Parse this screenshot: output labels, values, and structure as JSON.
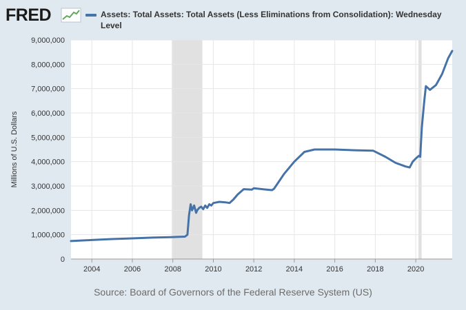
{
  "header": {
    "logo_text": "FRED",
    "logo_icon": "line-chart-icon"
  },
  "source_text": "Source: Board of Governors of the Federal Reserve System (US)",
  "chart_data": {
    "type": "line",
    "title": "",
    "xlabel": "",
    "ylabel": "Millions of U.S. Dollars",
    "xlim": [
      2002.97,
      2021.8
    ],
    "ylim": [
      0,
      9000000
    ],
    "grid": true,
    "legend_placement": "top",
    "x_ticks": [
      2004,
      2006,
      2008,
      2010,
      2012,
      2014,
      2016,
      2018,
      2020
    ],
    "x_tick_labels": [
      "2004",
      "2006",
      "2008",
      "2010",
      "2012",
      "2014",
      "2016",
      "2018",
      "2020"
    ],
    "y_ticks": [
      0,
      1000000,
      2000000,
      3000000,
      4000000,
      5000000,
      6000000,
      7000000,
      8000000,
      9000000
    ],
    "y_tick_labels": [
      "0",
      "1,000,000",
      "2,000,000",
      "3,000,000",
      "4,000,000",
      "5,000,000",
      "6,000,000",
      "7,000,000",
      "8,000,000",
      "9,000,000"
    ],
    "recessions": [
      [
        2007.95,
        2009.46
      ],
      [
        2020.13,
        2020.29
      ]
    ],
    "series": [
      {
        "name": "Assets: Total Assets: Total Assets (Less Eliminations from Consolidation): Wednesday Level",
        "color": "#4572a7",
        "x": [
          2002.97,
          2004.0,
          2005.0,
          2006.0,
          2007.0,
          2007.9,
          2008.6,
          2008.72,
          2008.8,
          2008.88,
          2008.95,
          2009.05,
          2009.15,
          2009.2,
          2009.3,
          2009.4,
          2009.5,
          2009.6,
          2009.7,
          2009.8,
          2009.9,
          2010.0,
          2010.3,
          2010.6,
          2010.8,
          2011.0,
          2011.2,
          2011.5,
          2011.9,
          2012.0,
          2012.5,
          2012.9,
          2013.0,
          2013.5,
          2014.0,
          2014.5,
          2015.0,
          2016.0,
          2017.0,
          2017.9,
          2018.5,
          2019.0,
          2019.5,
          2019.7,
          2019.85,
          2020.0,
          2020.15,
          2020.22,
          2020.3,
          2020.42,
          2020.5,
          2020.7,
          2021.0,
          2021.3,
          2021.6,
          2021.8
        ],
        "y": [
          740000,
          780000,
          820000,
          850000,
          880000,
          900000,
          920000,
          1000000,
          1800000,
          2250000,
          2000000,
          2200000,
          1900000,
          2000000,
          2100000,
          2150000,
          2050000,
          2200000,
          2100000,
          2250000,
          2200000,
          2300000,
          2350000,
          2330000,
          2300000,
          2450000,
          2650000,
          2870000,
          2850000,
          2910000,
          2860000,
          2830000,
          2890000,
          3500000,
          4000000,
          4400000,
          4500000,
          4500000,
          4470000,
          4450000,
          4200000,
          3950000,
          3800000,
          3760000,
          4000000,
          4130000,
          4240000,
          4200000,
          5400000,
          6500000,
          7100000,
          6950000,
          7150000,
          7600000,
          8250000,
          8550000
        ]
      }
    ]
  }
}
